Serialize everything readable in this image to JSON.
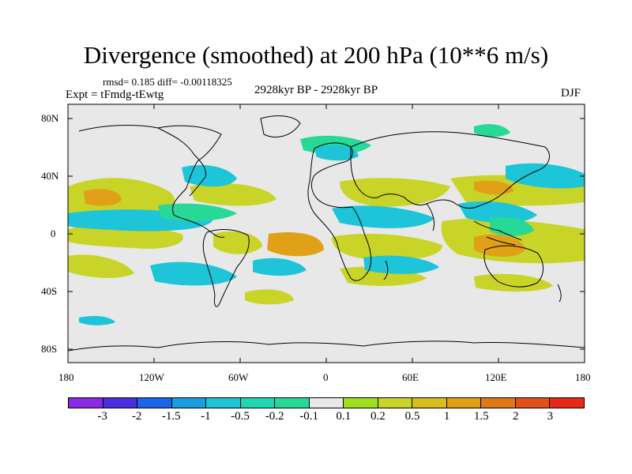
{
  "title": "Divergence (smoothed) at 200 hPa (10**6 m/s)",
  "stats": "rmsd= 0.185 diff= -0.00118325",
  "experiment": "Expt = tFmdg-tEwtg",
  "period": "2928kyr BP - 2928kyr BP",
  "season": "DJF",
  "lat_ticks": [
    "80N",
    "40N",
    "0",
    "40S",
    "80S"
  ],
  "lon_ticks": [
    "180",
    "120W",
    "60W",
    "0",
    "60E",
    "120E",
    "180"
  ],
  "colorbar": {
    "colors": [
      "#8a2be2",
      "#4a2fe0",
      "#1e64e8",
      "#1a9ee0",
      "#1ec4d8",
      "#1ed8b4",
      "#28d896",
      "#e8e8e8",
      "#a0e020",
      "#c8d428",
      "#d8bc20",
      "#e0a018",
      "#e07818",
      "#e05018",
      "#e82818"
    ],
    "labels": [
      "-3",
      "-2",
      "-1.5",
      "-1",
      "-0.5",
      "-0.2",
      "-0.1",
      "0.1",
      "0.2",
      "0.5",
      "1",
      "1.5",
      "2",
      "3"
    ]
  },
  "map_colors": {
    "background": "#e8e8e8",
    "blue": "#1ec4d8",
    "teal": "#28d896",
    "yellow": "#c8d428",
    "orange": "#e0a018",
    "coast": "#000000"
  }
}
